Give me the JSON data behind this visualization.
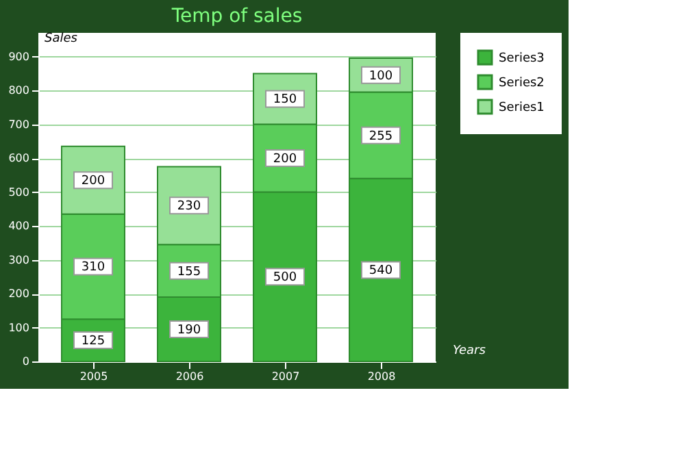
{
  "chart_data": {
    "type": "bar",
    "title": "Temp of sales",
    "xlabel": "Years",
    "ylabel": "Sales",
    "categories": [
      "2005",
      "2006",
      "2007",
      "2008"
    ],
    "stacked": true,
    "series": [
      {
        "name": "Series3",
        "color": "#3cb43c",
        "values": [
          125,
          190,
          500,
          540
        ]
      },
      {
        "name": "Series2",
        "color": "#5acd5a",
        "values": [
          310,
          155,
          200,
          255
        ]
      },
      {
        "name": "Series1",
        "color": "#96e096",
        "values": [
          200,
          230,
          150,
          100
        ]
      }
    ],
    "ylim": [
      0,
      970
    ],
    "yticks": [
      0,
      100,
      200,
      300,
      400,
      500,
      600,
      700,
      800,
      900
    ],
    "grid": "y",
    "legend": "top right",
    "data_labels": true
  }
}
